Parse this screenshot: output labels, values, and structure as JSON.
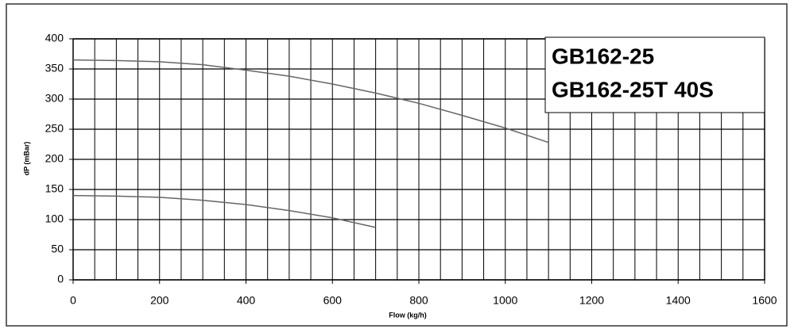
{
  "chart_data": {
    "type": "line",
    "xlabel": "Flow (kg/h)",
    "ylabel": "dP (mBar)",
    "annotations": [
      "GB162-25",
      "GB162-25T 40S"
    ],
    "xlim": [
      0,
      1600
    ],
    "xticks": [
      0,
      200,
      400,
      600,
      800,
      1000,
      1200,
      1400,
      1600
    ],
    "ylim": [
      0,
      400
    ],
    "yticks": [
      0,
      50,
      100,
      150,
      200,
      250,
      300,
      350,
      400
    ],
    "grid": true,
    "series": [
      {
        "color": "#666666",
        "x": [
          0,
          100,
          200,
          300,
          400,
          500,
          600,
          700,
          800,
          900,
          1000,
          1100
        ],
        "values": [
          365,
          364,
          362,
          357,
          348,
          338,
          325,
          310,
          293,
          273,
          252,
          228
        ]
      },
      {
        "color": "#666666",
        "x": [
          0,
          100,
          200,
          300,
          400,
          500,
          600,
          700
        ],
        "values": [
          140,
          139,
          137,
          132,
          125,
          115,
          103,
          87
        ]
      }
    ]
  }
}
